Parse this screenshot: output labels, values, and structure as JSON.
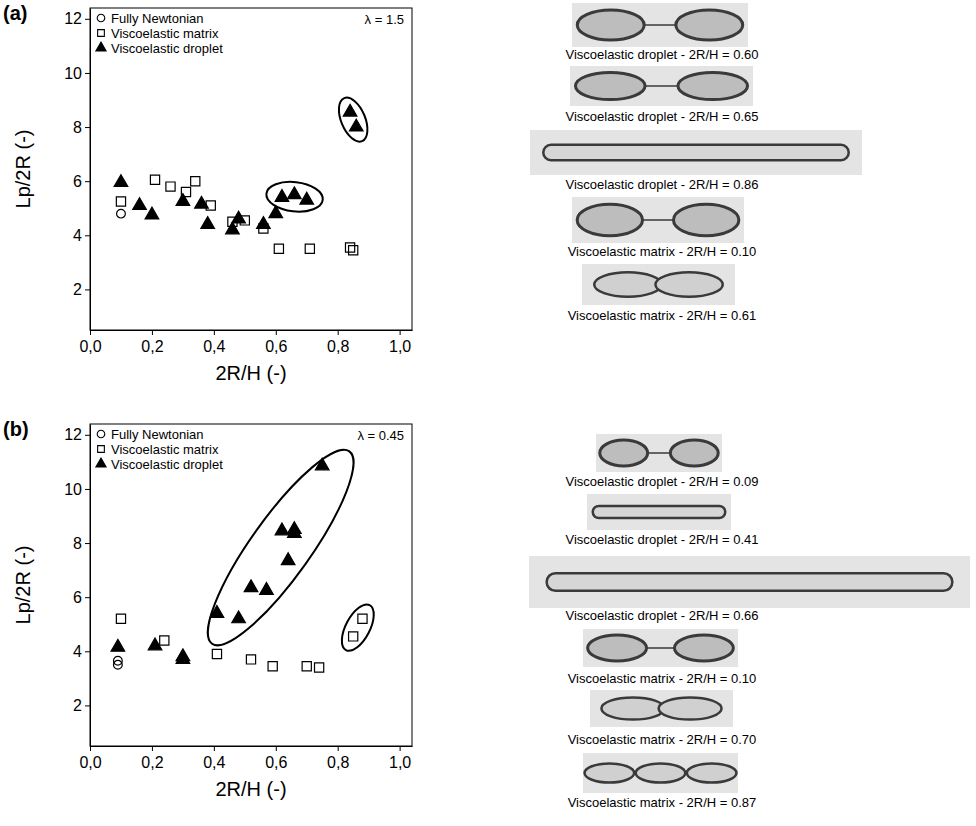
{
  "chart_data": [
    {
      "type": "scatter",
      "title": "(a)",
      "annotations": [
        "λ = 1.5"
      ],
      "x_label": "2R/H (-)",
      "y_label": "Lp/2R (-)",
      "xlim": [
        0,
        1.04
      ],
      "ylim": [
        0.5,
        12.4
      ],
      "xticks": [
        {
          "value": 0,
          "label": "0,0"
        },
        {
          "value": 0.2,
          "label": "0,2"
        },
        {
          "value": 0.4,
          "label": "0,4"
        },
        {
          "value": 0.6,
          "label": "0,6"
        },
        {
          "value": 0.8,
          "label": "0,8"
        },
        {
          "value": 1,
          "label": "1,0"
        }
      ],
      "yticks": [
        2,
        4,
        6,
        8,
        10,
        12
      ],
      "legend": "top-left",
      "grid": false,
      "series": [
        {
          "name": "Fully Newtonian",
          "color": "#000000",
          "marker": "open-circle",
          "x": [
            0.1
          ],
          "values": [
            4.8
          ]
        },
        {
          "name": "Viscoelastic matrix",
          "color": "#000000",
          "marker": "open-square",
          "x": [
            0.1,
            0.21,
            0.26,
            0.31,
            0.34,
            0.39,
            0.46,
            0.5,
            0.56,
            0.61,
            0.71,
            0.84,
            0.85
          ],
          "values": [
            5.25,
            6.05,
            5.8,
            5.6,
            6.0,
            5.1,
            4.5,
            4.55,
            4.25,
            3.5,
            3.5,
            3.55,
            3.45
          ]
        },
        {
          "name": "Viscoelastic droplet",
          "color": "#000000",
          "marker": "triangle",
          "x": [
            0.1,
            0.16,
            0.2,
            0.3,
            0.36,
            0.38,
            0.46,
            0.48,
            0.56,
            0.6,
            0.62,
            0.66,
            0.7,
            0.84,
            0.86
          ],
          "values": [
            5.95,
            5.1,
            4.75,
            5.25,
            5.15,
            4.4,
            4.2,
            4.6,
            4.4,
            4.8,
            5.4,
            5.5,
            5.3,
            8.55,
            8.0
          ]
        }
      ],
      "image_captions": [
        "Viscoelastic droplet - 2R/H = 0.60",
        "Viscoelastic droplet - 2R/H = 0.65",
        "Viscoelastic droplet - 2R/H = 0.86",
        "Viscoelastic matrix - 2R/H = 0.10",
        "Viscoelastic matrix - 2R/H = 0.61"
      ]
    },
    {
      "type": "scatter",
      "title": "(b)",
      "annotations": [
        "λ = 0.45"
      ],
      "x_label": "2R/H (-)",
      "y_label": "Lp/2R (-)",
      "xlim": [
        0,
        1.04
      ],
      "ylim": [
        0.5,
        12.4
      ],
      "xticks": [
        {
          "value": 0,
          "label": "0,0"
        },
        {
          "value": 0.2,
          "label": "0,2"
        },
        {
          "value": 0.4,
          "label": "0,4"
        },
        {
          "value": 0.6,
          "label": "0,6"
        },
        {
          "value": 0.8,
          "label": "0,8"
        },
        {
          "value": 1,
          "label": "1,0"
        }
      ],
      "yticks": [
        2,
        4,
        6,
        8,
        10,
        12
      ],
      "legend": "top-left",
      "grid": false,
      "series": [
        {
          "name": "Fully Newtonian",
          "color": "#000000",
          "marker": "open-circle",
          "x": [
            0.09,
            0.09
          ],
          "values": [
            3.65,
            3.5
          ]
        },
        {
          "name": "Viscoelastic matrix",
          "color": "#000000",
          "marker": "open-square",
          "x": [
            0.1,
            0.24,
            0.41,
            0.52,
            0.59,
            0.7,
            0.74,
            0.85,
            0.88
          ],
          "values": [
            5.2,
            4.4,
            3.9,
            3.7,
            3.45,
            3.45,
            3.4,
            4.55,
            5.2
          ]
        },
        {
          "name": "Viscoelastic droplet",
          "color": "#000000",
          "marker": "triangle",
          "x": [
            0.09,
            0.21,
            0.3,
            0.3,
            0.41,
            0.48,
            0.52,
            0.57,
            0.62,
            0.64,
            0.66,
            0.66,
            0.75
          ],
          "values": [
            4.15,
            4.2,
            3.8,
            3.7,
            5.4,
            5.2,
            6.35,
            6.25,
            8.45,
            7.35,
            8.5,
            8.35,
            10.85
          ]
        }
      ],
      "image_captions": [
        "Viscoelastic droplet - 2R/H = 0.09",
        "Viscoelastic droplet - 2R/H = 0.41",
        "Viscoelastic droplet - 2R/H = 0.66",
        "Viscoelastic matrix - 2R/H = 0.10",
        "Viscoelastic matrix - 2R/H = 0.70",
        "Viscoelastic matrix - 2R/H = 0.87"
      ]
    }
  ]
}
